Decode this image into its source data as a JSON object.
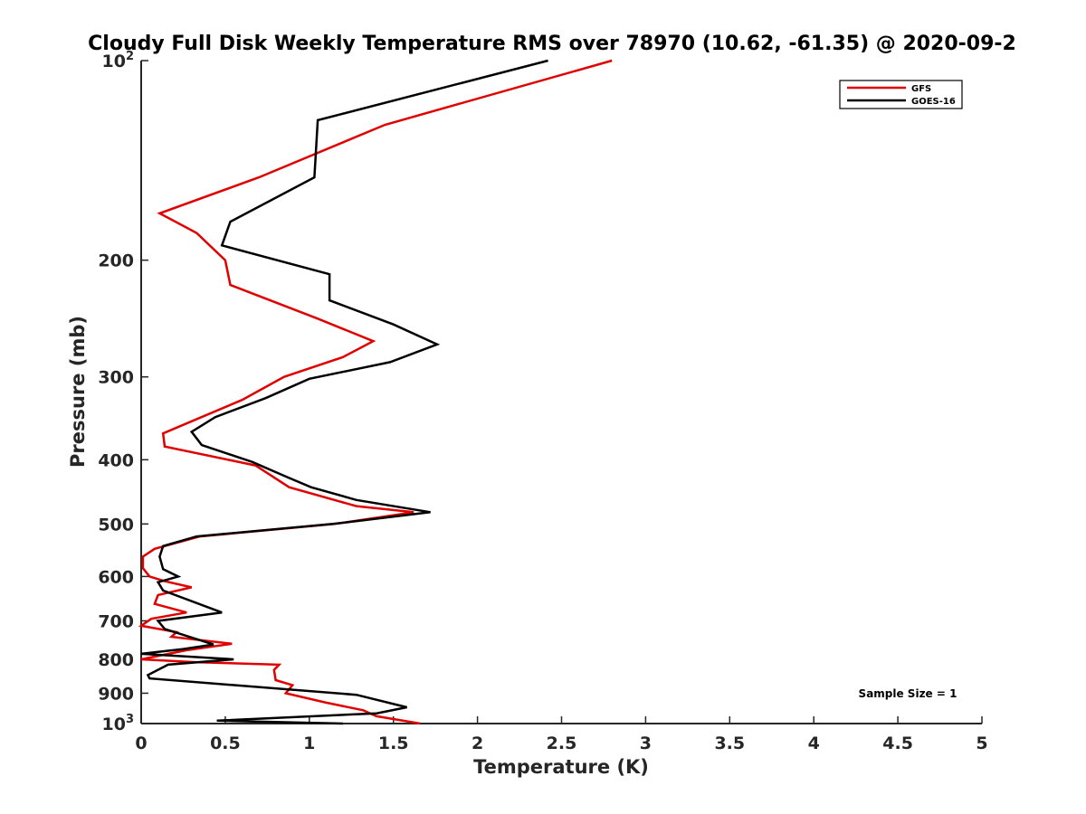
{
  "chart_data": {
    "type": "line",
    "title": "Cloudy Full Disk Weekly Temperature RMS over 78970 (10.62, -61.35) @ 2020-09-2",
    "xlabel": "Temperature (K)",
    "ylabel": "Pressure (mb)",
    "xlim": [
      0,
      5
    ],
    "ylim": [
      100,
      1000
    ],
    "y_scale": "log",
    "y_reversed": true,
    "x_ticks": [
      "0",
      "0.5",
      "1",
      "1.5",
      "2",
      "2.5",
      "3",
      "3.5",
      "4",
      "4.5",
      "5"
    ],
    "y_ticks": [
      {
        "value": 100,
        "base": "10",
        "exp": "2"
      },
      {
        "value": 200,
        "label": "200"
      },
      {
        "value": 300,
        "label": "300"
      },
      {
        "value": 400,
        "label": "400"
      },
      {
        "value": 500,
        "label": "500"
      },
      {
        "value": 600,
        "label": "600"
      },
      {
        "value": 700,
        "label": "700"
      },
      {
        "value": 800,
        "label": "800"
      },
      {
        "value": 900,
        "label": "900"
      },
      {
        "value": 1000,
        "base": "10",
        "exp": "3"
      }
    ],
    "legend_position": "top-right",
    "annotation": "Sample Size = 1",
    "series": [
      {
        "name": "GFS",
        "color": "#e00000",
        "points": [
          [
            2.8,
            100
          ],
          [
            1.45,
            125
          ],
          [
            0.7,
            150
          ],
          [
            0.11,
            170
          ],
          [
            0.33,
            182
          ],
          [
            0.5,
            200
          ],
          [
            0.53,
            218
          ],
          [
            1.05,
            245
          ],
          [
            1.38,
            265
          ],
          [
            1.2,
            280
          ],
          [
            0.85,
            300
          ],
          [
            0.6,
            325
          ],
          [
            0.3,
            350
          ],
          [
            0.13,
            365
          ],
          [
            0.14,
            382
          ],
          [
            0.68,
            408
          ],
          [
            0.88,
            440
          ],
          [
            1.28,
            470
          ],
          [
            1.62,
            480
          ],
          [
            1.15,
            500
          ],
          [
            0.35,
            522
          ],
          [
            0.08,
            545
          ],
          [
            0.01,
            560
          ],
          [
            0.01,
            583
          ],
          [
            0.05,
            600
          ],
          [
            0.14,
            610
          ],
          [
            0.3,
            623
          ],
          [
            0.1,
            640
          ],
          [
            0.08,
            660
          ],
          [
            0.27,
            680
          ],
          [
            0.06,
            695
          ],
          [
            0.0,
            712
          ],
          [
            0.21,
            728
          ],
          [
            0.18,
            740
          ],
          [
            0.54,
            758
          ],
          [
            0.27,
            775
          ],
          [
            0.0,
            800
          ],
          [
            0.32,
            808
          ],
          [
            0.82,
            815
          ],
          [
            0.79,
            830
          ],
          [
            0.8,
            860
          ],
          [
            0.9,
            875
          ],
          [
            0.86,
            900
          ],
          [
            1.1,
            930
          ],
          [
            1.32,
            955
          ],
          [
            1.4,
            975
          ],
          [
            1.66,
            1000
          ]
        ]
      },
      {
        "name": "GOES-16",
        "color": "#000000",
        "points": [
          [
            2.42,
            100
          ],
          [
            1.05,
            123
          ],
          [
            1.03,
            150
          ],
          [
            0.53,
            175
          ],
          [
            0.48,
            190
          ],
          [
            1.12,
            210
          ],
          [
            1.12,
            230
          ],
          [
            1.5,
            250
          ],
          [
            1.76,
            268
          ],
          [
            1.48,
            285
          ],
          [
            1.0,
            302
          ],
          [
            0.74,
            323
          ],
          [
            0.44,
            345
          ],
          [
            0.3,
            363
          ],
          [
            0.36,
            380
          ],
          [
            0.66,
            403
          ],
          [
            0.87,
            425
          ],
          [
            1.01,
            440
          ],
          [
            1.28,
            460
          ],
          [
            1.72,
            480
          ],
          [
            1.14,
            500
          ],
          [
            0.33,
            522
          ],
          [
            0.13,
            540
          ],
          [
            0.11,
            560
          ],
          [
            0.13,
            585
          ],
          [
            0.22,
            600
          ],
          [
            0.1,
            612
          ],
          [
            0.13,
            630
          ],
          [
            0.48,
            680
          ],
          [
            0.1,
            700
          ],
          [
            0.14,
            720
          ],
          [
            0.43,
            760
          ],
          [
            0.25,
            772
          ],
          [
            0.0,
            785
          ],
          [
            0.55,
            800
          ],
          [
            0.16,
            815
          ],
          [
            0.04,
            845
          ],
          [
            0.05,
            855
          ],
          [
            1.28,
            905
          ],
          [
            1.58,
            945
          ],
          [
            1.4,
            965
          ],
          [
            0.45,
            990
          ],
          [
            1.2,
            1000
          ]
        ]
      }
    ]
  }
}
